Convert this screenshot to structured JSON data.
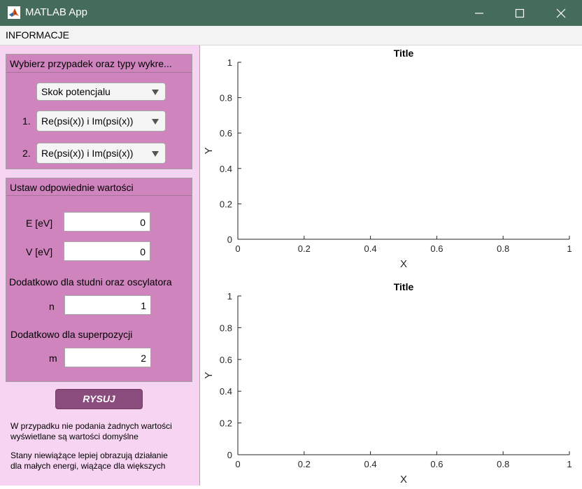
{
  "window": {
    "title": "MATLAB App",
    "titlebar_color": "#456b5a",
    "icons": [
      "matlab-logo-icon",
      "minimize-icon",
      "maximize-icon",
      "close-icon"
    ]
  },
  "menu": {
    "items": [
      {
        "label": "INFORMACJE"
      }
    ]
  },
  "left_panel": {
    "background": "#f6d4f2",
    "group1": {
      "title": "Wybierz przypadek oraz typy wykre...",
      "case_dropdown": {
        "value": "Skok potencjalu"
      },
      "plot1": {
        "number": "1.",
        "value": "Re(psi(x)) i Im(psi(x))"
      },
      "plot2": {
        "number": "2.",
        "value": "Re(psi(x)) i Im(psi(x))"
      }
    },
    "group2": {
      "title": "Ustaw odpowiednie wartości",
      "energy": {
        "label": "E [eV]",
        "value": "0"
      },
      "potential": {
        "label": "V [eV]",
        "value": "0"
      },
      "well_section": "Dodatkowo dla studni oraz oscylatora",
      "n": {
        "label": "n",
        "value": "1"
      },
      "superposition_section": "Dodatkowo dla superpozycji",
      "m": {
        "label": "m",
        "value": "2"
      }
    },
    "draw_button": {
      "label": "RYSUJ",
      "color": "#8a4c7c"
    },
    "note1": {
      "line1": "W przypadku nie podania żadnych wartości",
      "line2": "wyświetlane są wartości domyślne"
    },
    "note2": {
      "line1": "Stany niewiążące lepiej obrazują działanie",
      "line2": "dla małych energi, wiążące dla większych"
    }
  },
  "chart_data": [
    {
      "type": "line",
      "title": "Title",
      "xlabel": "X",
      "ylabel": "Y",
      "xlim": [
        0,
        1
      ],
      "ylim": [
        0,
        1
      ],
      "xticks": [
        "0",
        "0.2",
        "0.4",
        "0.6",
        "0.8",
        "1"
      ],
      "yticks": [
        "0",
        "0.2",
        "0.4",
        "0.6",
        "0.8",
        "1"
      ],
      "series": [],
      "grid": false
    },
    {
      "type": "line",
      "title": "Title",
      "xlabel": "X",
      "ylabel": "Y",
      "xlim": [
        0,
        1
      ],
      "ylim": [
        0,
        1
      ],
      "xticks": [
        "0",
        "0.2",
        "0.4",
        "0.6",
        "0.8",
        "1"
      ],
      "yticks": [
        "0",
        "0.2",
        "0.4",
        "0.6",
        "0.8",
        "1"
      ],
      "series": [],
      "grid": false
    }
  ]
}
